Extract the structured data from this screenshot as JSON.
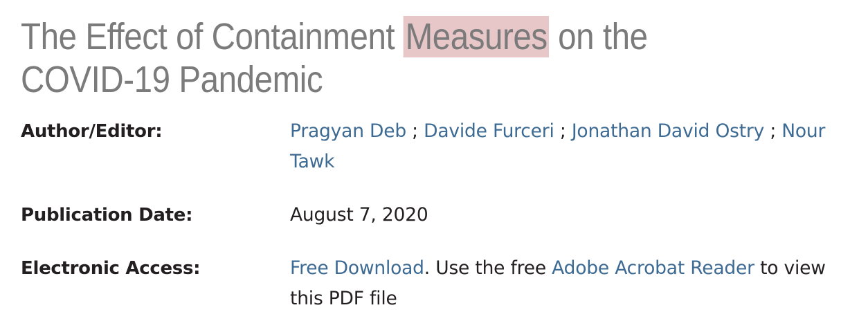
{
  "title": {
    "before": "The Effect of Containment ",
    "highlight": "Measures",
    "after": " on the COVID-19 Pandemic",
    "highlight_color": "#e8c7c9"
  },
  "author": {
    "label": "Author/Editor:",
    "names": [
      "Pragyan Deb",
      "Davide Furceri",
      "Jonathan David Ostry",
      "Nour Tawk"
    ],
    "separator": " ; "
  },
  "publication": {
    "label": "Publication Date:",
    "value": "August 7, 2020"
  },
  "access": {
    "label": "Electronic Access:",
    "download_link": "Free Download",
    "text_1": ". Use the free ",
    "reader_link": "Adobe Acrobat Reader",
    "text_2": " to view this PDF file"
  },
  "colors": {
    "link": "#3d6a93",
    "title": "#7b7b7b",
    "text": "#231f20"
  }
}
